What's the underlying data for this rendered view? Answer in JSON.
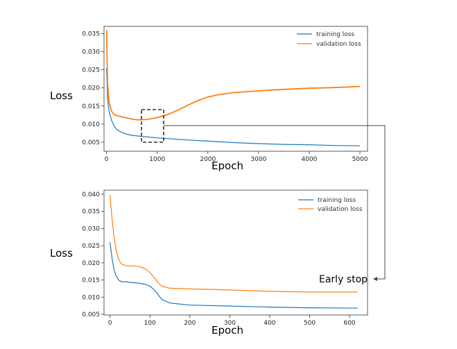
{
  "colors": {
    "training": "#1f77b4",
    "validation": "#ff7f0e"
  },
  "annotation": "Early stop",
  "chart_data": [
    {
      "type": "line",
      "xlabel": "Epoch",
      "ylabel": "Loss",
      "xlim": [
        -50,
        5150
      ],
      "ylim": [
        0.0025,
        0.037
      ],
      "xticks": [
        0,
        1000,
        2000,
        3000,
        4000,
        5000
      ],
      "yticks": [
        0.005,
        0.01,
        0.015,
        0.02,
        0.025,
        0.03,
        0.035
      ],
      "ytick_labels": [
        "0.005",
        "0.010",
        "0.015",
        "0.020",
        "0.025",
        "0.030",
        "0.035"
      ],
      "legend": "top-right",
      "grid": false,
      "series": [
        {
          "name": "training loss",
          "x": [
            0,
            20,
            50,
            100,
            150,
            200,
            300,
            400,
            500,
            700,
            1000,
            1500,
            2000,
            2500,
            3000,
            3500,
            4000,
            4500,
            5000
          ],
          "y": [
            0.0255,
            0.017,
            0.0135,
            0.011,
            0.0095,
            0.0085,
            0.0077,
            0.0072,
            0.0069,
            0.0066,
            0.0062,
            0.0057,
            0.0053,
            0.0049,
            0.0046,
            0.0044,
            0.0043,
            0.0041,
            0.004
          ]
        },
        {
          "name": "validation loss",
          "x": [
            0,
            20,
            50,
            100,
            150,
            200,
            300,
            400,
            500,
            600,
            700,
            800,
            1000,
            1200,
            1400,
            1600,
            1800,
            2000,
            2200,
            2500,
            3000,
            3500,
            4000,
            4500,
            5000
          ],
          "y": [
            0.036,
            0.021,
            0.016,
            0.0135,
            0.0126,
            0.0124,
            0.012,
            0.0117,
            0.0114,
            0.0112,
            0.0112,
            0.0113,
            0.0118,
            0.0126,
            0.0138,
            0.0152,
            0.0165,
            0.0175,
            0.0181,
            0.0187,
            0.0192,
            0.0196,
            0.0199,
            0.0201,
            0.0204
          ]
        }
      ]
    },
    {
      "type": "line",
      "xlabel": "Epoch",
      "ylabel": "Loss",
      "xlim": [
        -15,
        645
      ],
      "ylim": [
        0.0048,
        0.0412
      ],
      "xticks": [
        0,
        100,
        200,
        300,
        400,
        500,
        600
      ],
      "yticks": [
        0.005,
        0.01,
        0.015,
        0.02,
        0.025,
        0.03,
        0.035,
        0.04
      ],
      "ytick_labels": [
        "0.005",
        "0.010",
        "0.015",
        "0.020",
        "0.025",
        "0.030",
        "0.035",
        "0.040"
      ],
      "legend": "top-right",
      "grid": false,
      "series": [
        {
          "name": "training loss",
          "x": [
            0,
            5,
            10,
            15,
            20,
            25,
            30,
            40,
            50,
            70,
            90,
            100,
            110,
            120,
            130,
            150,
            200,
            300,
            400,
            500,
            620
          ],
          "y": [
            0.026,
            0.0215,
            0.018,
            0.0163,
            0.0152,
            0.0147,
            0.0145,
            0.0145,
            0.0143,
            0.0141,
            0.0137,
            0.0132,
            0.0122,
            0.0108,
            0.0093,
            0.0083,
            0.0077,
            0.0074,
            0.0071,
            0.0069,
            0.0068
          ]
        },
        {
          "name": "validation loss",
          "x": [
            0,
            5,
            10,
            15,
            20,
            25,
            30,
            40,
            50,
            60,
            70,
            80,
            90,
            100,
            110,
            120,
            130,
            150,
            200,
            300,
            400,
            500,
            620
          ],
          "y": [
            0.0398,
            0.033,
            0.0275,
            0.024,
            0.0215,
            0.0203,
            0.0196,
            0.0192,
            0.0191,
            0.0191,
            0.019,
            0.0187,
            0.0181,
            0.0172,
            0.0158,
            0.0143,
            0.0132,
            0.0126,
            0.0124,
            0.0121,
            0.0117,
            0.0115,
            0.0115
          ]
        }
      ]
    }
  ]
}
